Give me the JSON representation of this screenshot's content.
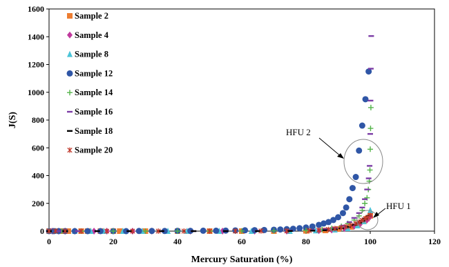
{
  "chart_data": {
    "type": "scatter",
    "xlabel": "Mercury Saturation (%)",
    "ylabel": "J(S)",
    "xlim": [
      0,
      120
    ],
    "ylim": [
      0,
      1600
    ],
    "xticks": [
      "0",
      "20",
      "40",
      "60",
      "80",
      "100",
      "120"
    ],
    "yticks": [
      "0",
      "200",
      "400",
      "600",
      "800",
      "1000",
      "1200",
      "1400",
      "1600"
    ],
    "grid": false,
    "legend_position": "top-left",
    "series": [
      {
        "name": "Sample 2",
        "marker": "square",
        "color": "#ED7D31",
        "x": [
          0,
          2,
          4,
          6,
          10,
          12,
          16,
          20,
          22,
          30,
          40,
          50,
          60,
          70,
          80,
          86,
          90,
          94,
          96,
          98,
          99,
          100
        ],
        "y": [
          0,
          0,
          0,
          0,
          0,
          0,
          0,
          0,
          0,
          0,
          0,
          0,
          0,
          0,
          2,
          5,
          15,
          30,
          45,
          70,
          90,
          110
        ]
      },
      {
        "name": "Sample 4",
        "marker": "diamond",
        "color": "#C0399D",
        "x": [
          1,
          3,
          5,
          8,
          14,
          18,
          26,
          32,
          44,
          54,
          64,
          74,
          84,
          88,
          92,
          95,
          97,
          99,
          100
        ],
        "y": [
          0,
          0,
          0,
          0,
          0,
          0,
          0,
          0,
          0,
          0,
          0,
          0,
          3,
          8,
          18,
          35,
          55,
          80,
          105
        ]
      },
      {
        "name": "Sample 8",
        "marker": "triangle",
        "color": "#4BC4D8",
        "x": [
          0,
          2,
          8,
          13,
          17,
          23,
          29,
          37,
          43,
          53,
          63,
          75,
          83,
          89,
          93,
          96,
          98,
          100
        ],
        "y": [
          0,
          0,
          0,
          0,
          0,
          0,
          0,
          0,
          0,
          0,
          0,
          0,
          4,
          10,
          20,
          40,
          70,
          150
        ]
      },
      {
        "name": "Sample 12",
        "marker": "circle",
        "color": "#2F56A6",
        "x": [
          0,
          1.5,
          3,
          5,
          8,
          12,
          16,
          20,
          24,
          28,
          32,
          36,
          40,
          44,
          48,
          52,
          55,
          58,
          61,
          64,
          67,
          70,
          72,
          74,
          76,
          78,
          80,
          82,
          84,
          85.5,
          87,
          88.5,
          90,
          91.5,
          92.5,
          93.5,
          94.5,
          95.5,
          96.5,
          97.5,
          98.5,
          99.5
        ],
        "y": [
          0,
          0,
          0,
          0,
          0,
          0,
          0,
          0,
          0,
          1,
          1,
          1,
          2,
          2,
          3,
          3,
          4,
          5,
          6,
          7,
          8,
          10,
          12,
          14,
          17,
          21,
          26,
          33,
          45,
          55,
          65,
          80,
          100,
          130,
          170,
          230,
          310,
          390,
          580,
          760,
          950,
          1150
        ]
      },
      {
        "name": "Sample 14",
        "marker": "plus",
        "color": "#52B348",
        "x": [
          0,
          4,
          10,
          20,
          30,
          40,
          50,
          60,
          70,
          80,
          85,
          88,
          91,
          93,
          95,
          96.5,
          97.5,
          98.3,
          99,
          99.4,
          99.7,
          99.9,
          100,
          100.1,
          100.2
        ],
        "y": [
          0,
          0,
          0,
          0,
          0,
          0,
          0,
          1,
          2,
          5,
          12,
          20,
          35,
          55,
          80,
          110,
          150,
          200,
          240,
          300,
          360,
          440,
          590,
          740,
          890
        ]
      },
      {
        "name": "Sample 16",
        "marker": "dash",
        "color": "#7B3BA5",
        "x": [
          0,
          3,
          9,
          15,
          25,
          35,
          45,
          55,
          65,
          75,
          82,
          86,
          89,
          91.5,
          93.5,
          95,
          96.5,
          97.5,
          98.3,
          99,
          99.5,
          99.8,
          100,
          100.1,
          100.2,
          100.3
        ],
        "y": [
          0,
          0,
          0,
          0,
          0,
          0,
          0,
          1,
          2,
          4,
          8,
          15,
          25,
          40,
          65,
          95,
          130,
          170,
          230,
          300,
          380,
          470,
          700,
          940,
          1170,
          1405
        ]
      },
      {
        "name": "Sample 18",
        "marker": "dash",
        "color": "#000000",
        "x": [
          0,
          5,
          15,
          25,
          35,
          45,
          55,
          65,
          75,
          82,
          86,
          89,
          91,
          93,
          95,
          96.5,
          97.5,
          98.5,
          99.5
        ],
        "y": [
          0,
          0,
          0,
          0,
          0,
          0,
          0,
          0,
          1,
          3,
          6,
          12,
          20,
          30,
          45,
          60,
          75,
          90,
          110
        ]
      },
      {
        "name": "Sample 20",
        "marker": "star",
        "color": "#C0392B",
        "x": [
          0,
          2,
          5,
          10,
          18,
          26,
          34,
          42,
          50,
          58,
          66,
          74,
          81,
          84,
          87,
          89,
          91,
          92.5,
          94,
          95.5,
          96.5,
          97.5,
          98.5,
          99.3,
          100
        ],
        "y": [
          0,
          0,
          0,
          0,
          0,
          0,
          0,
          0,
          0,
          0,
          1,
          2,
          4,
          7,
          12,
          18,
          25,
          32,
          42,
          55,
          65,
          78,
          90,
          100,
          115
        ]
      }
    ],
    "annotations": [
      {
        "label": "HFU 2",
        "target": [
          97,
          460
        ]
      },
      {
        "label": "HFU 1",
        "target": [
          99,
          80
        ]
      }
    ]
  }
}
